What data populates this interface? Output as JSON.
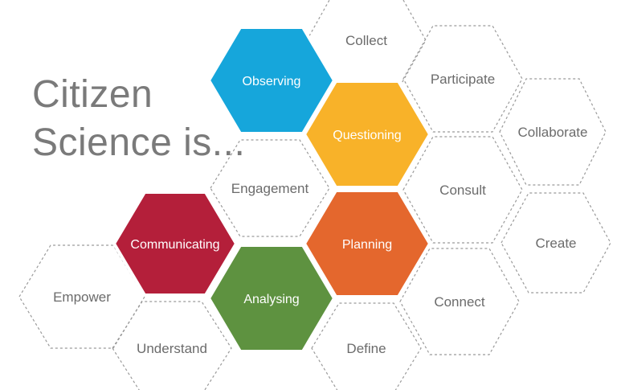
{
  "headline": {
    "line1": "Citizen",
    "line2": "Science is..."
  },
  "colors": {
    "observing": "#16a6db",
    "questioning": "#f8b229",
    "communicating": "#b41f3a",
    "planning": "#e4672d",
    "analysing": "#5e9240",
    "outline": "#9a9a9a",
    "text_gray": "#6b6b6b"
  },
  "filled_hexes": {
    "observing": "Observing",
    "questioning": "Questioning",
    "communicating": "Communicating",
    "planning": "Planning",
    "analysing": "Analysing"
  },
  "outline_hexes": {
    "collect": "Collect",
    "participate": "Participate",
    "collaborate": "Collaborate",
    "consult": "Consult",
    "create": "Create",
    "connect": "Connect",
    "define": "Define",
    "understand": "Understand",
    "empower": "Empower",
    "engagement": "Engagement"
  }
}
